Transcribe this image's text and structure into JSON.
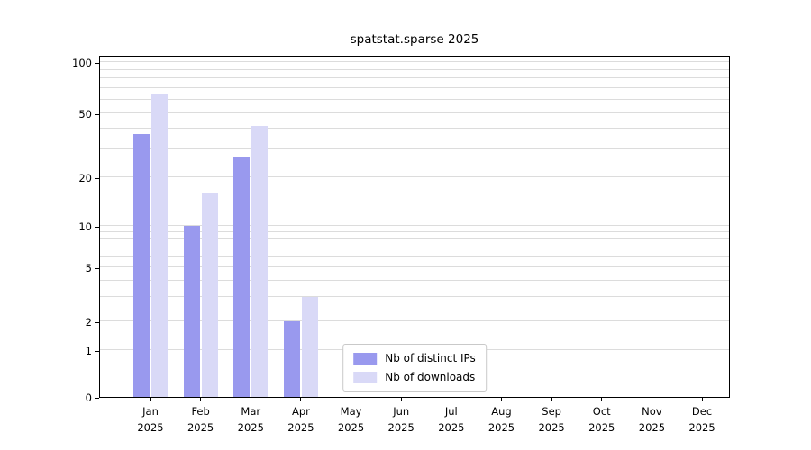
{
  "chart_data": {
    "type": "bar",
    "title": "spatstat.sparse 2025",
    "months": [
      "Jan",
      "Feb",
      "Mar",
      "Apr",
      "May",
      "Jun",
      "Jul",
      "Aug",
      "Sep",
      "Oct",
      "Nov",
      "Dec"
    ],
    "year": "2025",
    "series": [
      {
        "name": "Nb of distinct IPs",
        "color": "#9999ee",
        "values": [
          37,
          10,
          27,
          2,
          null,
          null,
          null,
          null,
          null,
          null,
          null,
          null
        ]
      },
      {
        "name": "Nb of downloads",
        "color": "#d9d9f7",
        "values": [
          65,
          16,
          42,
          3,
          null,
          null,
          null,
          null,
          null,
          null,
          null,
          null
        ]
      }
    ],
    "yticks": [
      0,
      1,
      2,
      5,
      10,
      20,
      50,
      100
    ],
    "ylim": [
      0,
      100
    ],
    "yscale": "log-with-zero",
    "grid": "horizontal",
    "legend_position": "lower center"
  }
}
